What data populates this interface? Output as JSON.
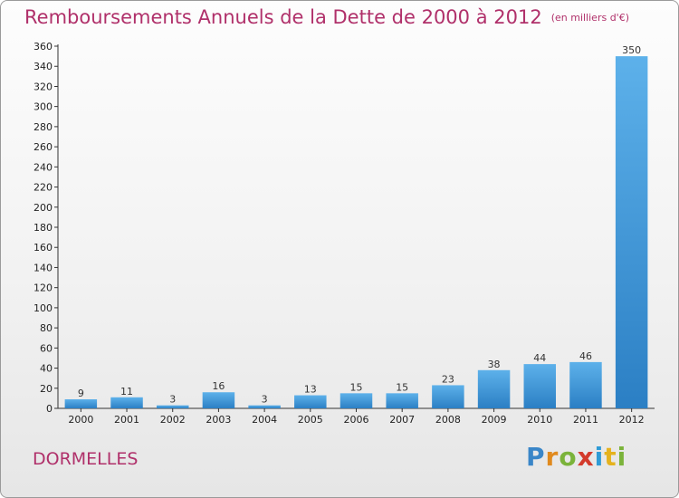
{
  "chart_data": {
    "type": "bar",
    "title": "Remboursements Annuels de la Dette de 2000 à 2012",
    "unit_note": "(en milliers d'€)",
    "categories": [
      "2000",
      "2001",
      "2002",
      "2003",
      "2004",
      "2005",
      "2006",
      "2007",
      "2008",
      "2009",
      "2010",
      "2011",
      "2012"
    ],
    "values": [
      9,
      11,
      3,
      16,
      3,
      13,
      15,
      15,
      23,
      38,
      44,
      46,
      350
    ],
    "ylim": [
      0,
      360
    ],
    "ytick_step": 20,
    "grid": false,
    "bar_color": "#3d97dc"
  },
  "footer": {
    "commune": "DORMELLES",
    "logo": [
      "P",
      "r",
      "o",
      "x",
      "i",
      "t",
      "i"
    ]
  }
}
